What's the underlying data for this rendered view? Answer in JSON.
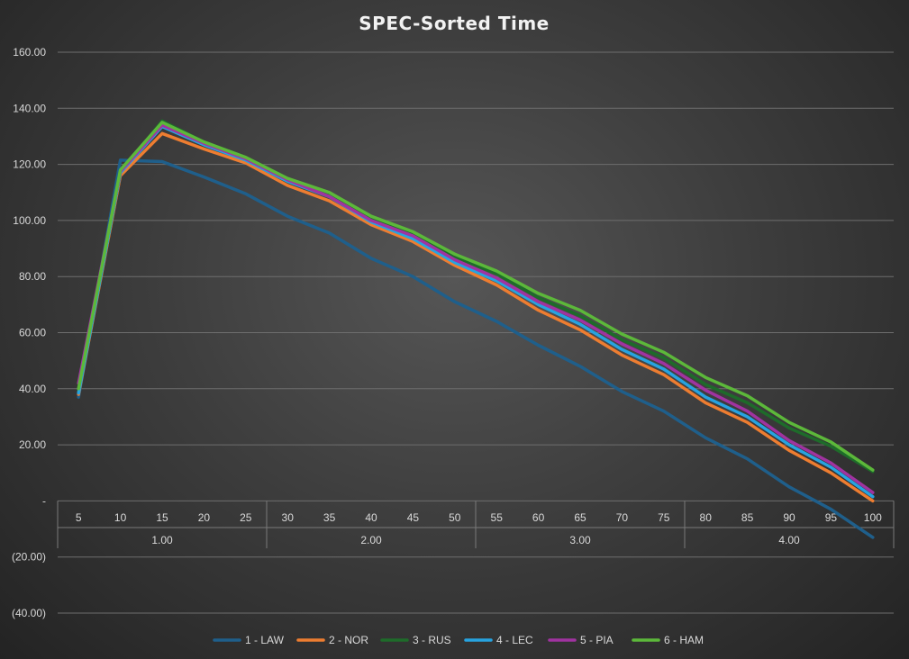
{
  "chart_data": {
    "type": "line",
    "title": "SPEC-Sorted Time",
    "xlabel": "",
    "ylabel": "",
    "ylim": [
      -40,
      160
    ],
    "yticks": [
      160,
      140,
      120,
      100,
      80,
      60,
      40,
      20,
      0,
      -20,
      -40
    ],
    "ytick_labels": [
      "160.00",
      "140.00",
      "120.00",
      "100.00",
      "80.00",
      "60.00",
      "40.00",
      "20.00",
      "-",
      "(20.00)",
      "(40.00)"
    ],
    "categories": [
      "5",
      "10",
      "15",
      "20",
      "25",
      "30",
      "35",
      "40",
      "45",
      "50",
      "55",
      "60",
      "65",
      "70",
      "75",
      "80",
      "85",
      "90",
      "95",
      "100"
    ],
    "groups": [
      {
        "label": "1.00",
        "count": 5
      },
      {
        "label": "2.00",
        "count": 5
      },
      {
        "label": "3.00",
        "count": 5
      },
      {
        "label": "4.00",
        "count": 5
      }
    ],
    "legend_position": "bottom",
    "gridlines": true,
    "series": [
      {
        "name": "1 - LAW",
        "color": "#1f5f8b",
        "values": [
          37,
          121.5,
          121,
          115.5,
          109.5,
          101.5,
          95.5,
          86.5,
          80,
          71,
          64,
          55.5,
          48,
          39,
          32,
          22.5,
          15,
          5,
          -3,
          -13
        ]
      },
      {
        "name": "2 - NOR",
        "color": "#ed7d31",
        "values": [
          38,
          116,
          131,
          125.5,
          120.5,
          112.5,
          107,
          98.5,
          92.5,
          84,
          77,
          68,
          61,
          52,
          45,
          35,
          28,
          18,
          10,
          0
        ]
      },
      {
        "name": "3 - RUS",
        "color": "#1e6b2a",
        "values": [
          39,
          117,
          135.5,
          128,
          122.5,
          115,
          109.5,
          101,
          95.5,
          87,
          81,
          72.5,
          66,
          57.5,
          51,
          41.5,
          35,
          26,
          19.5,
          10.5
        ]
      },
      {
        "name": "4 - LEC",
        "color": "#27a3e0",
        "values": [
          38.5,
          117,
          133.5,
          127,
          121.5,
          114,
          108.5,
          99.5,
          93.5,
          85,
          78.5,
          70,
          63,
          54,
          47,
          37,
          30,
          20,
          12,
          1.5
        ]
      },
      {
        "name": "5 - PIA",
        "color": "#a033a0",
        "values": [
          42,
          117.5,
          134,
          127.5,
          122,
          114.5,
          108.5,
          100,
          94.5,
          86,
          79.5,
          71,
          64.5,
          56,
          49,
          39.5,
          32,
          21.5,
          13.5,
          3
        ]
      },
      {
        "name": "6 - HAM",
        "color": "#5cb83a",
        "values": [
          40,
          118,
          135,
          128,
          122.5,
          115,
          110,
          101.5,
          96,
          88,
          82,
          74,
          68,
          59.5,
          53,
          44,
          37.5,
          28,
          21,
          11
        ]
      }
    ]
  }
}
